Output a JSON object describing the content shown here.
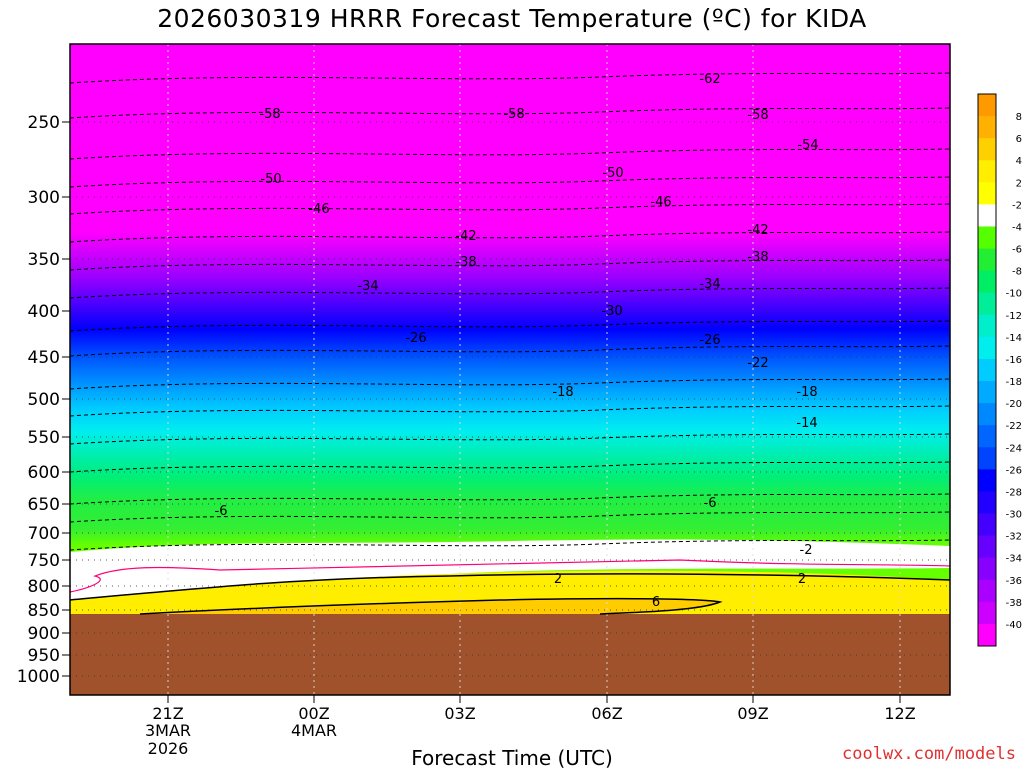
{
  "title": "2026030319 HRRR Forecast Temperature (ºC) for KIDA",
  "credit": "coolwx.com/models",
  "chart_data": {
    "type": "heatmap",
    "title": "2026030319 HRRR Forecast Temperature (ºC) for KIDA",
    "xlabel": "Forecast Time (UTC)",
    "ylabel": "",
    "x_ticks": [
      {
        "label": "21Z",
        "sub": [
          "3MAR",
          "2026"
        ]
      },
      {
        "label": "00Z",
        "sub": [
          "4MAR"
        ]
      },
      {
        "label": "03Z",
        "sub": []
      },
      {
        "label": "06Z",
        "sub": []
      },
      {
        "label": "09Z",
        "sub": []
      },
      {
        "label": "12Z",
        "sub": []
      }
    ],
    "y_ticks": [
      "250",
      "300",
      "350",
      "400",
      "450",
      "500",
      "550",
      "600",
      "650",
      "700",
      "750",
      "800",
      "850",
      "900",
      "950",
      "1000"
    ],
    "y_scale": "log pressure (hPa), inverted",
    "colorbar": {
      "labels": [
        "8",
        "6",
        "4",
        "2",
        "-2",
        "-4",
        "-6",
        "-8",
        "-10",
        "-12",
        "-14",
        "-16",
        "-18",
        "-20",
        "-22",
        "-24",
        "-26",
        "-28",
        "-30",
        "-32",
        "-34",
        "-36",
        "-38",
        "-40"
      ],
      "colors": [
        "#ff9900",
        "#ffb000",
        "#ffd000",
        "#ffee00",
        "#ffff00",
        "#ffffff",
        "#55ff00",
        "#22ee33",
        "#00ee66",
        "#00ee99",
        "#00eecc",
        "#00eeee",
        "#00ccff",
        "#00aaff",
        "#0088ff",
        "#0066ff",
        "#0044ff",
        "#0000ff",
        "#2200ff",
        "#4400ff",
        "#6600ff",
        "#8800ff",
        "#aa00ff",
        "#cc00ff",
        "#ff00ff"
      ]
    },
    "contour_labels": [
      "-62",
      "-58",
      "-58",
      "-58",
      "-54",
      "-50",
      "-50",
      "-46",
      "-46",
      "-42",
      "-42",
      "-38",
      "-38",
      "-34",
      "-34",
      "-30",
      "-26",
      "-26",
      "-22",
      "-18",
      "-18",
      "-14",
      "-6",
      "-6",
      "-2",
      "2",
      "2",
      "6"
    ],
    "grid": true
  }
}
